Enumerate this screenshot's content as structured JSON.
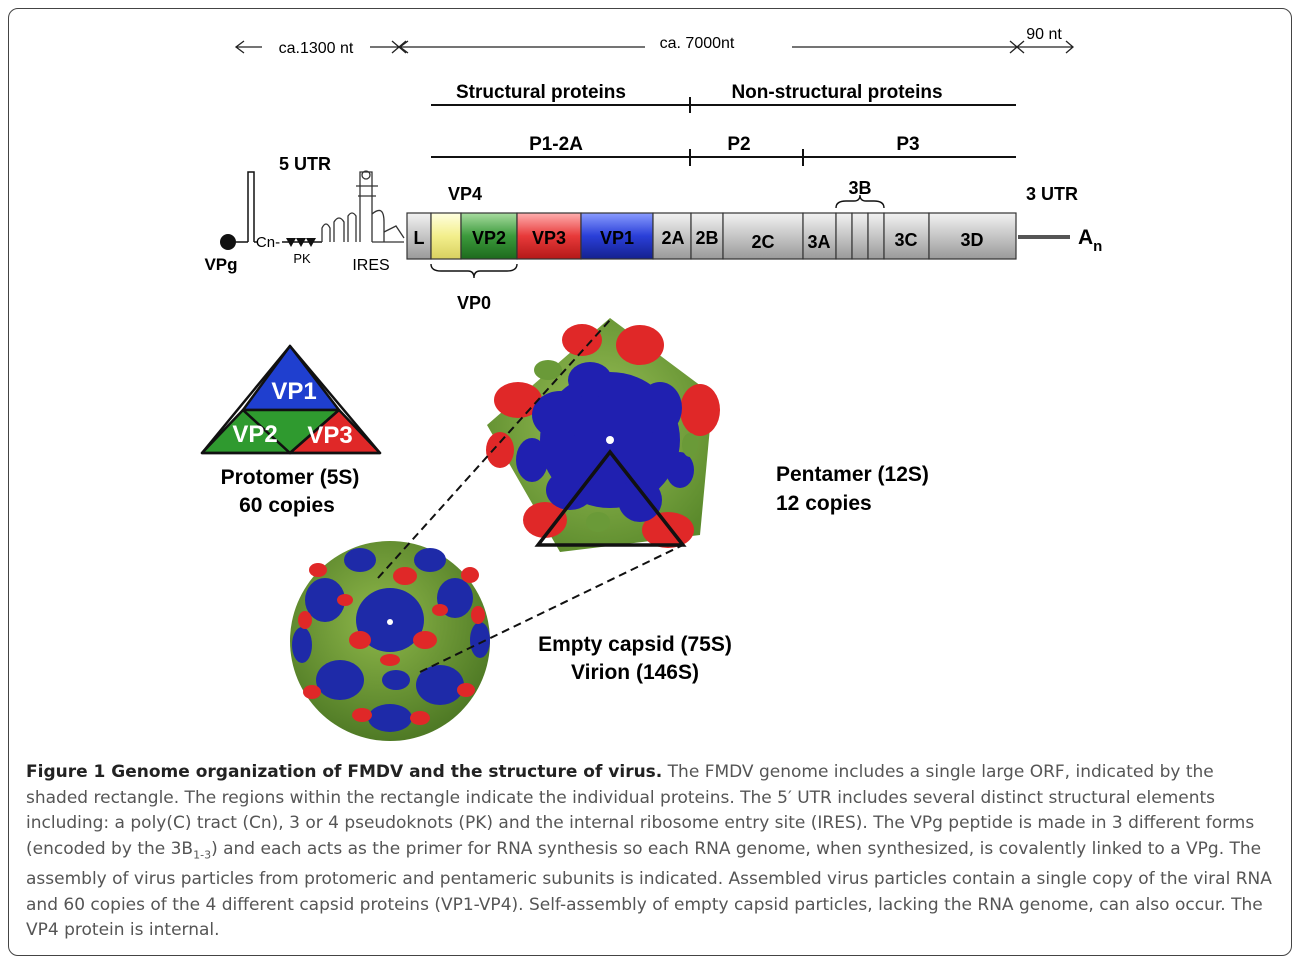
{
  "lengths": {
    "left": "ca.1300 nt",
    "middle": "ca. 7000nt",
    "right": "90 nt"
  },
  "regions": {
    "structural": "Structural proteins",
    "nonstructural": "Non-structural proteins"
  },
  "precursors": {
    "p1": "P1-2A",
    "p2": "P2",
    "p3": "P3"
  },
  "utr": {
    "five": "5 UTR",
    "three": "3 UTR"
  },
  "utr_elements": {
    "vpg": "VPg",
    "cn": "Cn-",
    "pk": "PK",
    "ires": "IRES"
  },
  "polyA": {
    "base": "A",
    "sub": "n"
  },
  "genes": {
    "L": "L",
    "VP4": "VP4",
    "VP2": "VP2",
    "VP3": "VP3",
    "VP1": "VP1",
    "2A": "2A",
    "2B": "2B",
    "2C": "2C",
    "3A": "3A",
    "3B": "3B",
    "3C": "3C",
    "3D": "3D",
    "VP0": "VP0"
  },
  "colors": {
    "vp1": "#1f3fbf",
    "vp2": "#2f8a2f",
    "vp3": "#e03030",
    "vp4": "#f3ef8c",
    "nonstructural": "#c8c8c8",
    "capsid_green": "#6f9a3a"
  },
  "protomer": {
    "vp1": "VP1",
    "vp2": "VP2",
    "vp3": "VP3",
    "name": "Protomer (5S)",
    "copies": "60 copies"
  },
  "pentamer": {
    "name": "Pentamer (12S)",
    "copies": "12 copies"
  },
  "capsid": {
    "empty": "Empty capsid (75S)",
    "virion": "Virion (146S)"
  },
  "caption": {
    "title": "Figure 1 Genome organization of FMDV and the structure of virus.",
    "text_a": " The FMDV genome includes a single large ORF, indicated by the shaded rectangle. The regions within the rectangle indicate the individual proteins. The 5′ UTR includes several distinct structural elements including: a poly(C) tract (Cn), 3 or 4 pseudoknots (PK) and the internal ribosome entry site (IRES). The VPg peptide is made in 3 different forms (encoded by the 3B",
    "sub": "1-3",
    "text_b": ") and each acts as the primer for RNA synthesis so each RNA genome, when synthesized, is covalently linked to a VPg. The assembly of virus particles from protomeric and pentameric subunits is indicated. Assembled virus particles contain a single copy of the viral RNA and 60 copies of the 4 different capsid proteins (VP1-VP4). Self-assembly of empty capsid particles, lacking the RNA genome, can also occur. The VP4 protein is internal."
  }
}
